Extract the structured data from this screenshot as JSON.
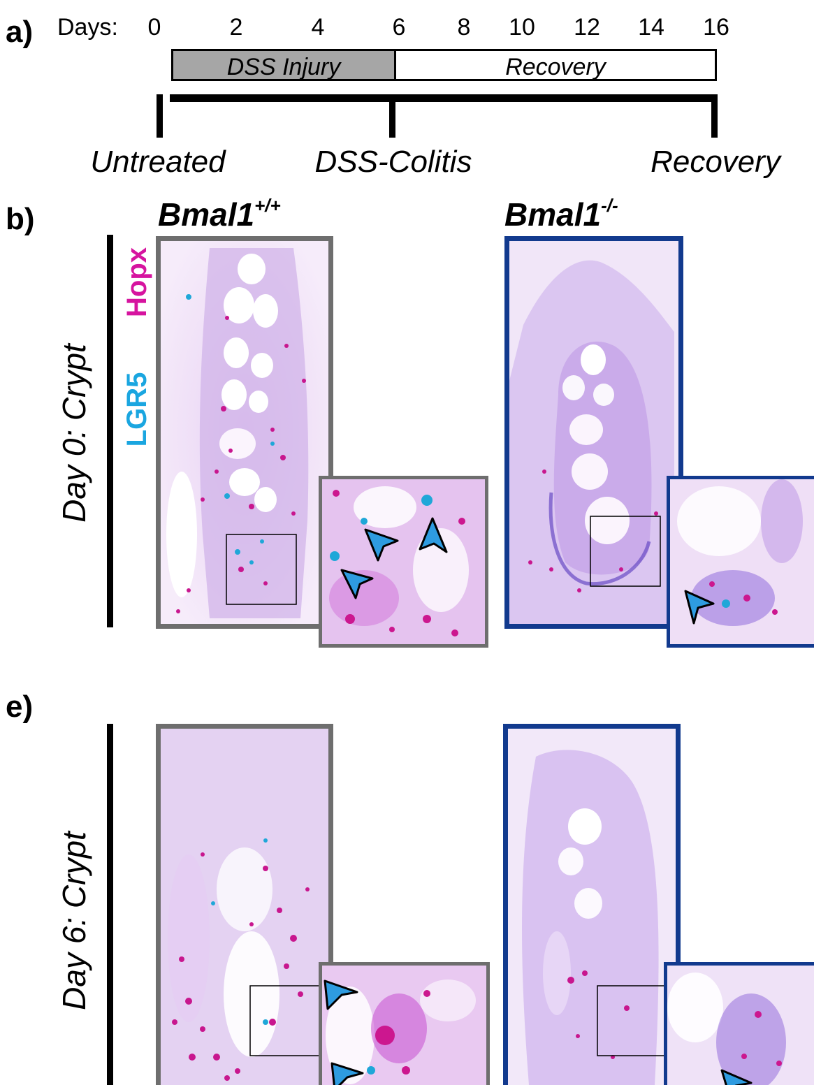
{
  "panel_a": {
    "label": "a)",
    "days_label": "Days:",
    "ticks": [
      "0",
      "2",
      "4",
      "6",
      "8",
      "10",
      "12",
      "14",
      "16"
    ],
    "phases": [
      {
        "label": "DSS Injury",
        "start_day": 0,
        "end_day": 6,
        "color": "#a6a6a6"
      },
      {
        "label": "Recovery",
        "start_day": 6,
        "end_day": 16,
        "color": "#ffffff"
      }
    ],
    "stages": [
      {
        "label": "Untreated",
        "day": 0
      },
      {
        "label": "DSS-Colitis",
        "day": 6
      },
      {
        "label": "Recovery",
        "day": 16
      }
    ]
  },
  "panel_b": {
    "label": "b)",
    "genotypes": [
      {
        "name": "Bmal1",
        "sup": "+/+",
        "frame_color": "#6e6e6e"
      },
      {
        "name": "Bmal1",
        "sup": "-/-",
        "frame_color": "#123a8e"
      }
    ],
    "row_label": "Day 0: Crypt",
    "stains": [
      {
        "label": "Hopx",
        "color": "#d6149f"
      },
      {
        "label": "LGR5",
        "color": "#1aa6e0"
      }
    ]
  },
  "panel_e": {
    "label": "e)",
    "row_label": "Day 6: Crypt"
  },
  "colors": {
    "wildtype_frame": "#6e6e6e",
    "knockout_frame": "#123a8e",
    "arrowhead": "#2e9be0"
  }
}
